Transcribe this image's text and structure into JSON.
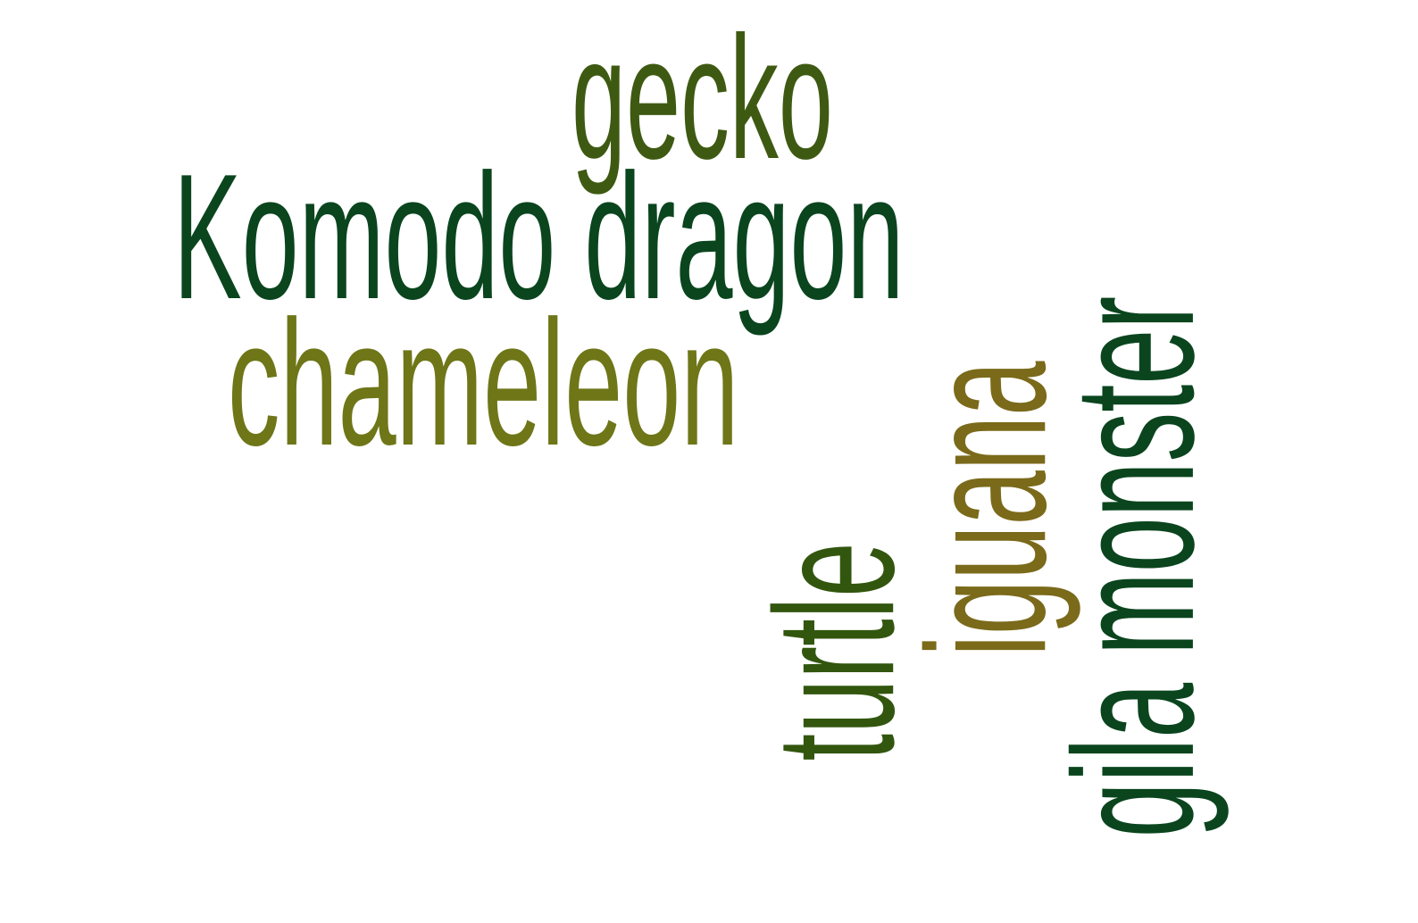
{
  "words": {
    "gecko": {
      "text": "gecko",
      "color": "#3E5A12"
    },
    "komodo_dragon": {
      "text": "Komodo dragon",
      "color": "#0A451E"
    },
    "chameleon": {
      "text": "chameleon",
      "color": "#6E7618"
    },
    "turtle": {
      "text": "turtle",
      "color": "#32560E"
    },
    "iguana": {
      "text": "iguana",
      "color": "#7A6A1A"
    },
    "gila_monster": {
      "text": "gila monster",
      "color": "#0A451E"
    }
  }
}
